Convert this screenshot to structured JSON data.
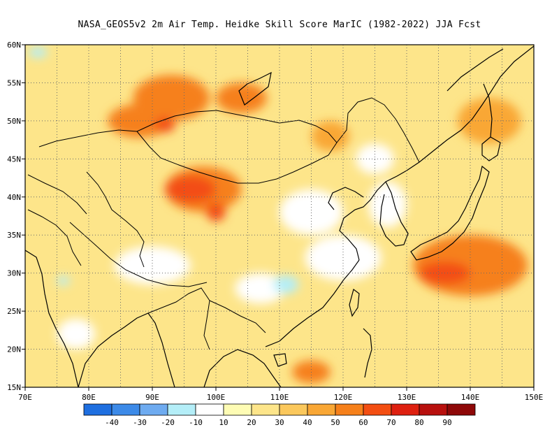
{
  "title": "NASA_GEOS5v2  2m Air Temp. Heidke Skill Score MarIC (1982-2022) JJA Fcst",
  "map": {
    "lon_range": [
      70,
      150
    ],
    "lat_range": [
      15,
      60
    ],
    "lon_ticks": [
      "70E",
      "80E",
      "90E",
      "100E",
      "110E",
      "120E",
      "130E",
      "140E",
      "150E"
    ],
    "lat_ticks": [
      "15N",
      "20N",
      "25N",
      "30N",
      "35N",
      "40N",
      "45N",
      "50N",
      "55N",
      "60N"
    ],
    "grid": "dotted"
  },
  "colorbar": {
    "colors": [
      "#1e6fe0",
      "#3c8ae8",
      "#6eabf0",
      "#b4eef8",
      "#ffffff",
      "#fefcb4",
      "#fde58a",
      "#fbc85c",
      "#f9a735",
      "#f6801a",
      "#f34e12",
      "#de2010",
      "#b8100e",
      "#8e0808"
    ],
    "labels": [
      "-40",
      "-30",
      "-20",
      "-10",
      "10",
      "20",
      "30",
      "40",
      "50",
      "60",
      "70",
      "80",
      "90"
    ]
  },
  "regions": [
    {
      "name": "orange-mongolia-north",
      "lon": 93,
      "lat": 53,
      "rx": 6,
      "ry": 3,
      "level": 50
    },
    {
      "name": "orange-baikal",
      "lon": 104,
      "lat": 53,
      "rx": 4,
      "ry": 2,
      "level": 50
    },
    {
      "name": "orange-kazakh",
      "lon": 88,
      "lat": 50,
      "rx": 5,
      "ry": 2.2,
      "level": 50
    },
    {
      "name": "red-west-mongolia",
      "lon": 92,
      "lat": 49.5,
      "rx": 1.6,
      "ry": 1,
      "level": 60
    },
    {
      "name": "orange-xinjiang",
      "lon": 98,
      "lat": 41,
      "rx": 6,
      "ry": 3,
      "level": 50
    },
    {
      "name": "red-xinjiang",
      "lon": 96,
      "lat": 41,
      "rx": 4,
      "ry": 1.8,
      "level": 60
    },
    {
      "name": "red-qinghai",
      "lon": 100,
      "lat": 38,
      "rx": 1.5,
      "ry": 1.2,
      "level": 60
    },
    {
      "name": "orange-pacific-east",
      "lon": 140,
      "lat": 31,
      "rx": 9,
      "ry": 4,
      "level": 50
    },
    {
      "name": "red-pacific-east",
      "lon": 136,
      "lat": 30,
      "rx": 4,
      "ry": 1.5,
      "level": 60
    },
    {
      "name": "orange-south-china",
      "lon": 115,
      "lat": 17,
      "rx": 3,
      "ry": 1.5,
      "level": 50
    },
    {
      "name": "orange-manchuria",
      "lon": 118,
      "lat": 48,
      "rx": 3,
      "ry": 2,
      "level": 40
    },
    {
      "name": "orange-north-pacific",
      "lon": 143,
      "lat": 50,
      "rx": 5,
      "ry": 3,
      "level": 40
    }
  ],
  "white_regions": [
    {
      "name": "white-tibet",
      "lon": 90,
      "lat": 31,
      "rx": 6,
      "ry": 2.5
    },
    {
      "name": "white-north-china",
      "lon": 115,
      "lat": 38,
      "rx": 5,
      "ry": 3
    },
    {
      "name": "white-east-china",
      "lon": 120,
      "lat": 32,
      "rx": 6,
      "ry": 3
    },
    {
      "name": "white-sichuan",
      "lon": 107,
      "lat": 28,
      "rx": 4,
      "ry": 2
    },
    {
      "name": "white-korea-sea",
      "lon": 127,
      "lat": 39,
      "rx": 3,
      "ry": 3
    },
    {
      "name": "white-india",
      "lon": 78,
      "lat": 22,
      "rx": 3,
      "ry": 2
    },
    {
      "name": "white-manchuria-north",
      "lon": 125,
      "lat": 45,
      "rx": 3,
      "ry": 2
    }
  ],
  "cyan_regions": [
    {
      "name": "cyan-yangtze",
      "lon": 111,
      "lat": 28.5,
      "rx": 2,
      "ry": 1.2
    },
    {
      "name": "cyan-nw-corner",
      "lon": 72,
      "lat": 59,
      "rx": 1.5,
      "ry": 0.7
    },
    {
      "name": "cyan-tibet",
      "lon": 76,
      "lat": 29,
      "rx": 1,
      "ry": 0.6
    }
  ]
}
